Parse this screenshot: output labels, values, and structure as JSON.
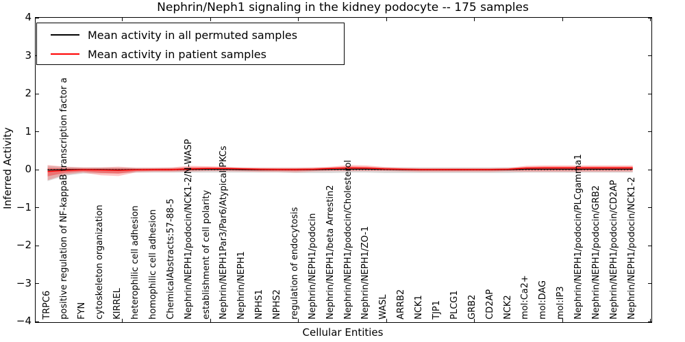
{
  "title": "Nephrin/Neph1 signaling in the kidney podocyte -- 175 samples",
  "legend": {
    "entries": [
      {
        "label": "Mean activity in all permuted samples",
        "color": "#000000"
      },
      {
        "label": "Mean activity in patient samples",
        "color": "#ff0000"
      }
    ]
  },
  "axes": {
    "ylabel": "Inferred Activity",
    "xlabel": "Cellular Entities",
    "ylim": [
      -4,
      4
    ],
    "ytick_labels": [
      "4",
      "3",
      "2",
      "1",
      "0",
      "−1",
      "−2",
      "−3",
      "−4"
    ],
    "ytick_values": [
      4,
      3,
      2,
      1,
      0,
      -1,
      -2,
      -3,
      -4
    ]
  },
  "chart_data": {
    "type": "line",
    "title": "Nephrin/Neph1 signaling in the kidney podocyte -- 175 samples",
    "xlabel": "Cellular Entities",
    "ylabel": "Inferred Activity",
    "ylim": [
      -4,
      4
    ],
    "legend_position": "upper left",
    "grid": false,
    "zero_line": 0,
    "band_colors": {
      "patient": "rgba(255,0,0,0.22)",
      "patient_inner": "rgba(255,0,0,0.33)",
      "permuted": "rgba(0,0,0,0.14)"
    },
    "categories": [
      "TRPC6",
      "positive regulation of NF-kappaB transcription factor a",
      "FYN",
      "cytoskeleton organization",
      "KIRREL",
      "heterophilic cell adhesion",
      "homophilic cell adhesion",
      "ChemicalAbstracts:57-88-5",
      "Nephrin/NEPH1/podocin/NCK1-2/N-WASP",
      "establishment of cell polarity",
      "Nephrin/NEPH1Par3/Par6/Atypical PKCs",
      "Nephrin/NEPH1",
      "NPHS1",
      "NPHS2",
      "regulation of endocytosis",
      "Nephrin/NEPH1/podocin",
      "Nephrin/NEPH1/beta Arrestin2",
      "Nephrin/NEPH1/podocin/Cholesterol",
      "Nephrin/NEPH1/ZO-1",
      "WASL",
      "ARRB2",
      "NCK1",
      "TJP1",
      "PLCG1",
      "GRB2",
      "CD2AP",
      "NCK2",
      "mol:Ca2+",
      "mol:DAG",
      "mol:IP3",
      "Nephrin/NEPH1/podocin/PLCgamma1",
      "Nephrin/NEPH1/podocin/GRB2",
      "Nephrin/NEPH1/podocin/CD2AP",
      "Nephrin/NEPH1/podocin/NCK1-2"
    ],
    "series": [
      {
        "name": "Mean activity in all permuted samples",
        "color": "#000000",
        "values": [
          -0.01,
          0,
          0,
          0,
          -0.005,
          0,
          0,
          0,
          0.005,
          0.005,
          0.005,
          0,
          0,
          0,
          0,
          0,
          0.005,
          0.01,
          0.01,
          0.005,
          0,
          0,
          0,
          0,
          0,
          0,
          0,
          0.01,
          0.01,
          0.01,
          0.01,
          0.01,
          0.01,
          0.01
        ]
      },
      {
        "name": "Mean activity in patient samples",
        "color": "#ff0000",
        "values": [
          -0.05,
          -0.02,
          -0.005,
          -0.01,
          -0.02,
          -0.005,
          0,
          0,
          0.02,
          0.03,
          0.03,
          0.02,
          0.01,
          0.005,
          0.005,
          0.01,
          0.03,
          0.045,
          0.04,
          0.02,
          0.01,
          0.005,
          0.005,
          0.005,
          0.005,
          0.005,
          0.01,
          0.04,
          0.045,
          0.045,
          0.045,
          0.045,
          0.045,
          0.045
        ]
      }
    ],
    "bands": {
      "patient_upper": [
        0.12,
        0.08,
        0.06,
        0.06,
        0.08,
        0.05,
        0.05,
        0.06,
        0.1,
        0.09,
        0.08,
        0.06,
        0.05,
        0.05,
        0.05,
        0.06,
        0.08,
        0.12,
        0.11,
        0.07,
        0.05,
        0.04,
        0.04,
        0.04,
        0.04,
        0.04,
        0.05,
        0.1,
        0.11,
        0.11,
        0.11,
        0.11,
        0.11,
        0.11
      ],
      "patient_lower": [
        -0.28,
        -0.13,
        -0.08,
        -0.15,
        -0.17,
        -0.07,
        -0.06,
        -0.06,
        -0.05,
        -0.04,
        -0.04,
        -0.05,
        -0.06,
        -0.06,
        -0.07,
        -0.05,
        -0.04,
        -0.04,
        -0.04,
        -0.04,
        -0.05,
        -0.06,
        -0.06,
        -0.06,
        -0.06,
        -0.06,
        -0.05,
        -0.06,
        -0.06,
        -0.06,
        -0.06,
        -0.06,
        -0.06,
        -0.06
      ],
      "permuted_upper": [
        0.1,
        0.07,
        0.06,
        0.06,
        0.06,
        0.05,
        0.05,
        0.05,
        0.05,
        0.05,
        0.05,
        0.05,
        0.05,
        0.05,
        0.05,
        0.05,
        0.05,
        0.05,
        0.05,
        0.06,
        0.06,
        0.06,
        0.06,
        0.06,
        0.06,
        0.06,
        0.06,
        0.05,
        0.05,
        0.05,
        0.05,
        0.05,
        0.05,
        0.05
      ],
      "permuted_lower": [
        -0.3,
        -0.16,
        -0.1,
        -0.1,
        -0.1,
        -0.08,
        -0.08,
        -0.08,
        -0.08,
        -0.08,
        -0.08,
        -0.08,
        -0.08,
        -0.08,
        -0.09,
        -0.09,
        -0.09,
        -0.08,
        -0.08,
        -0.09,
        -0.09,
        -0.09,
        -0.09,
        -0.09,
        -0.09,
        -0.09,
        -0.09,
        -0.08,
        -0.08,
        -0.08,
        -0.08,
        -0.08,
        -0.08,
        -0.08
      ]
    }
  }
}
